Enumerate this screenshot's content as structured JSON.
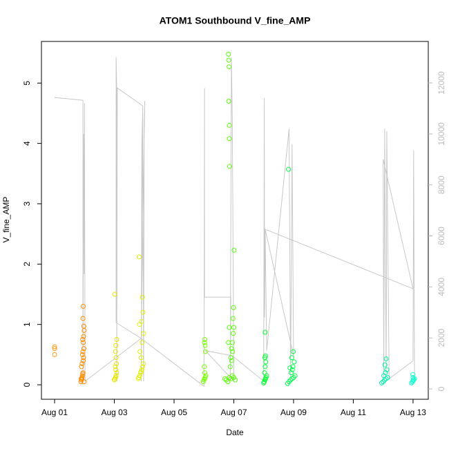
{
  "chart_data": {
    "type": "scatter",
    "title": "ATOM1 Southbound V_fine_AMP",
    "xlabel": "Date",
    "ylabel": "V_fine_AMP",
    "xlim": [
      -0.44,
      12.51
    ],
    "xticks": [
      {
        "value": 0,
        "label": "Aug 01"
      },
      {
        "value": 2,
        "label": "Aug 03"
      },
      {
        "value": 4,
        "label": "Aug 05"
      },
      {
        "value": 6,
        "label": "Aug 07"
      },
      {
        "value": 8,
        "label": "Aug 09"
      },
      {
        "value": 10,
        "label": "Aug 11"
      },
      {
        "value": 12,
        "label": "Aug 13"
      }
    ],
    "ylim": [
      -0.24,
      5.69
    ],
    "yticks": [
      0,
      1,
      2,
      3,
      4,
      5
    ],
    "y2lim": [
      -406,
      13626
    ],
    "y2ticks": [
      0,
      2000,
      4000,
      6000,
      8000,
      10000,
      12000
    ],
    "y2color": "#bbbbbb",
    "series": [
      {
        "mode": "line",
        "axis": "y2",
        "color": "#c8c8c8",
        "x": [
          0,
          0.95,
          0.95,
          0.97,
          0.99,
          1.0,
          1.02,
          2.9,
          2.06,
          2.06,
          2.08,
          2.08,
          2.1,
          2.95,
          2.9,
          2.92,
          2.95,
          2.98,
          3.0,
          3.02,
          2.9,
          5.0,
          5.02,
          5.02,
          5.9,
          5.88,
          5.92,
          5.95,
          6.0,
          5.05,
          5.95,
          7.0,
          7.02,
          7.03,
          7.05,
          7.1,
          7.85,
          7.9,
          7.95,
          8.0,
          7.05,
          12.0,
          11.0,
          11.02,
          11.05,
          11.1,
          11.12,
          11.2,
          12.0,
          12.02,
          12.05
        ],
        "values": [
          11430,
          11320,
          300,
          10000,
          4500,
          11200,
          300,
          1980,
          2600,
          13000,
          11800,
          300,
          11800,
          11100,
          300,
          9500,
          11000,
          300,
          10500,
          11300,
          1980,
          100,
          11800,
          3600,
          3600,
          300,
          13000,
          10500,
          300,
          1500,
          1300,
          300,
          11400,
          2800,
          6260,
          1500,
          10200,
          400,
          9600,
          1300,
          6260,
          3930,
          9000,
          400,
          10200,
          600,
          10100,
          400,
          1100,
          9350,
          200
        ]
      },
      {
        "mode": "points",
        "color": "#ff9a1a",
        "x": [
          0,
          0,
          0
        ],
        "values": [
          0.5,
          0.6,
          0.63
        ]
      },
      {
        "mode": "points",
        "color": "#ff8c00",
        "x": [
          0.88,
          0.9,
          0.91,
          0.92,
          0.93,
          0.94,
          0.95,
          0.9,
          0.92,
          0.96,
          0.97,
          0.93,
          0.95,
          0.98,
          0.96,
          0.94,
          0.97,
          0.99,
          0.98,
          0.95,
          0.96,
          0.99,
          0.89
        ],
        "values": [
          0.05,
          0.08,
          0.1,
          0.12,
          0.15,
          0.18,
          0.2,
          0.3,
          0.35,
          0.4,
          0.45,
          0.5,
          0.55,
          0.6,
          0.7,
          0.75,
          0.8,
          0.9,
          0.97,
          1.1,
          1.3,
          0.05,
          0.1
        ]
      },
      {
        "mode": "points",
        "color": "#e6e600",
        "x": [
          2.0,
          2.02,
          2.04,
          2.06,
          2.08,
          2.05,
          2.03,
          2.07,
          2.06,
          2.04,
          2.05,
          2.08,
          2.02
        ],
        "values": [
          0.08,
          0.1,
          0.12,
          0.15,
          0.2,
          0.25,
          0.3,
          0.35,
          0.45,
          0.55,
          0.65,
          0.75,
          1.5
        ]
      },
      {
        "mode": "points",
        "color": "#e0f000",
        "x": [
          2.8,
          2.82,
          2.85,
          2.88,
          2.9,
          2.92,
          2.95,
          2.97,
          2.9,
          2.86,
          2.93,
          2.98,
          2.84,
          2.96,
          2.91,
          2.94,
          2.83
        ],
        "values": [
          0.1,
          0.12,
          0.15,
          0.2,
          0.22,
          0.25,
          0.3,
          0.35,
          0.45,
          0.55,
          0.7,
          0.85,
          1.0,
          1.2,
          1.05,
          1.45,
          2.12
        ]
      },
      {
        "mode": "points",
        "color": "#77ff00",
        "x": [
          4.98,
          5.0,
          5.02,
          5.04,
          5.06,
          5.03,
          5.01,
          5.05,
          5.04,
          5.02,
          5.03
        ],
        "values": [
          0.05,
          0.08,
          0.1,
          0.12,
          0.15,
          0.2,
          0.3,
          0.55,
          0.65,
          0.7,
          0.75
        ]
      },
      {
        "mode": "points",
        "color": "#55ff00",
        "x": [
          5.7,
          5.75,
          5.8,
          5.85,
          5.9,
          5.95,
          6.0,
          6.05,
          5.88,
          5.9,
          5.92,
          5.95,
          5.98,
          6.0,
          5.97,
          5.99,
          5.82,
          5.83,
          5.84,
          5.83,
          5.85,
          5.85,
          5.86,
          5.82,
          5.85,
          6.01,
          5.96,
          5.93
        ],
        "values": [
          0.1,
          0.08,
          0.05,
          0.12,
          0.1,
          0.15,
          0.12,
          0.08,
          0.3,
          0.45,
          0.6,
          0.7,
          0.85,
          0.95,
          1.1,
          1.28,
          5.48,
          5.38,
          5.27,
          4.7,
          4.3,
          4.08,
          3.62,
          0.7,
          0.95,
          2.23,
          0.55,
          0.4
        ]
      },
      {
        "mode": "points",
        "color": "#00ff2a",
        "x": [
          7.0,
          7.02,
          7.04,
          7.06,
          7.08,
          7.1,
          7.03,
          7.05,
          7.07,
          7.04,
          7.06,
          7.05
        ],
        "values": [
          0.03,
          0.05,
          0.08,
          0.1,
          0.12,
          0.15,
          0.2,
          0.3,
          0.38,
          0.45,
          0.48,
          0.87
        ]
      },
      {
        "mode": "points",
        "color": "#00ff4c",
        "x": [
          7.8,
          7.85,
          7.9,
          7.95,
          8.0,
          8.05,
          7.92,
          7.96,
          7.98,
          8.02,
          7.94,
          7.99,
          7.88,
          7.83
        ],
        "values": [
          0.02,
          0.05,
          0.08,
          0.1,
          0.12,
          0.15,
          0.2,
          0.25,
          0.3,
          0.38,
          0.45,
          0.55,
          0.28,
          3.57
        ]
      },
      {
        "mode": "points",
        "color": "#00f0a8",
        "x": [
          10.95,
          11.0,
          11.05,
          11.1,
          11.15,
          11.02,
          11.08,
          11.12,
          11.06,
          11.1
        ],
        "values": [
          0.03,
          0.05,
          0.08,
          0.1,
          0.12,
          0.15,
          0.2,
          0.25,
          0.33,
          0.43
        ]
      },
      {
        "mode": "points",
        "color": "#00ffcc",
        "x": [
          11.95,
          11.98,
          12.0,
          12.02,
          12.05,
          12.0,
          11.99
        ],
        "values": [
          0.03,
          0.05,
          0.07,
          0.08,
          0.1,
          0.12,
          0.17
        ]
      }
    ]
  }
}
